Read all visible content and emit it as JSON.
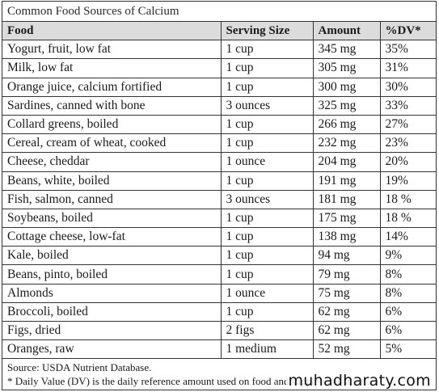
{
  "caption": "Common Food Sources of Calcium",
  "columns": [
    "Food",
    "Serving Size",
    "Amount",
    "%DV*"
  ],
  "rows": [
    [
      "Yogurt, fruit, low fat",
      "1 cup",
      "345 mg",
      "35%"
    ],
    [
      "Milk, low fat",
      "1 cup",
      "305 mg",
      "31%"
    ],
    [
      "Orange juice, calcium fortified",
      "1 cup",
      "300 mg",
      "30%"
    ],
    [
      "Sardines, canned with bone",
      "3 ounces",
      "325 mg",
      "33%"
    ],
    [
      "Collard greens, boiled",
      "1 cup",
      "266 mg",
      "27%"
    ],
    [
      "Cereal, cream of wheat, cooked",
      "1 cup",
      "232 mg",
      "23%"
    ],
    [
      "Cheese, cheddar",
      "1 ounce",
      "204 mg",
      "20%"
    ],
    [
      "Beans, white, boiled",
      "1 cup",
      "191 mg",
      "19%"
    ],
    [
      "Fish, salmon, canned",
      "3 ounces",
      "181 mg",
      "18 %"
    ],
    [
      "Soybeans, boiled",
      "1 cup",
      "175 mg",
      "18 %"
    ],
    [
      "Cottage cheese, low-fat",
      "1 cup",
      "138 mg",
      "14%"
    ],
    [
      "Kale, boiled",
      "1 cup",
      "94 mg",
      "9%"
    ],
    [
      "Beans, pinto, boiled",
      "1 cup",
      "79 mg",
      "8%"
    ],
    [
      "Almonds",
      "1 ounce",
      "75 mg",
      "8%"
    ],
    [
      "Broccoli, boiled",
      "1 cup",
      "62 mg",
      "6%"
    ],
    [
      "Figs, dried",
      "2 figs",
      "62 mg",
      "6%"
    ],
    [
      "Oranges, raw",
      "1 medium",
      "52 mg",
      "5%"
    ]
  ],
  "source": "Source: USDA Nutrient Database.",
  "footnote": "* Daily Value (DV) is the daily reference amount used on food and supplement labels.",
  "watermark": "muhadharaty.com"
}
